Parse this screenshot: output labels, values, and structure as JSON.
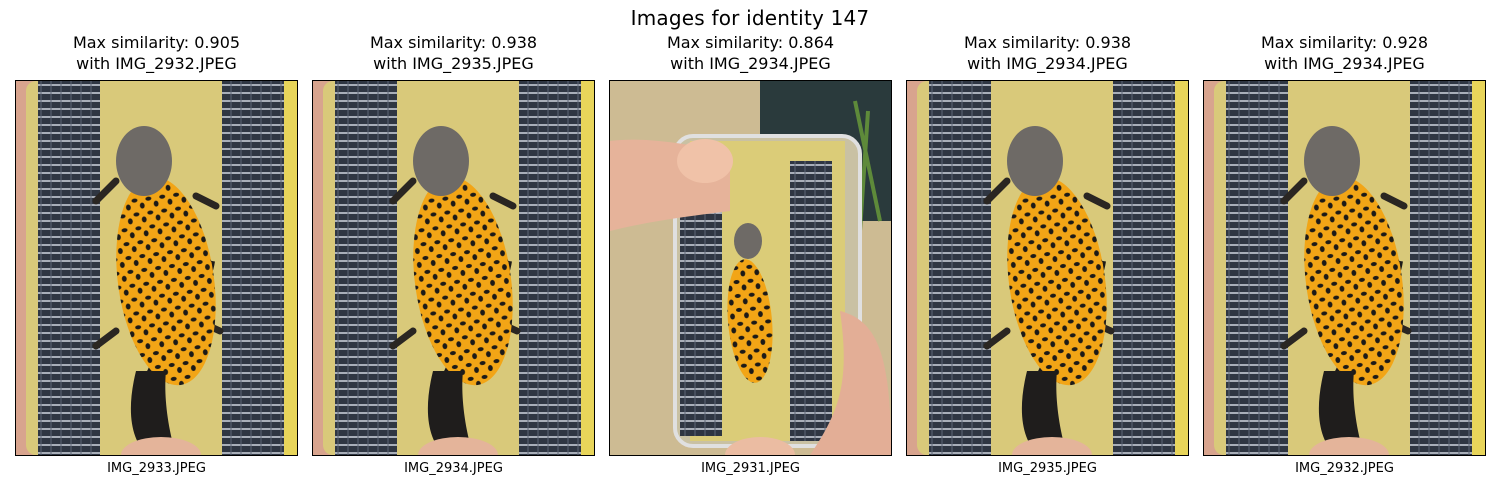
{
  "figure": {
    "title": "Images for identity 147"
  },
  "panels": [
    {
      "title_line1": "Max similarity: 0.905",
      "title_line2": "with IMG_2932.JPEG",
      "filename": "IMG_2933.JPEG"
    },
    {
      "title_line1": "Max similarity: 0.938",
      "title_line2": "with IMG_2935.JPEG",
      "filename": "IMG_2934.JPEG"
    },
    {
      "title_line1": "Max similarity: 0.864",
      "title_line2": "with IMG_2934.JPEG",
      "filename": "IMG_2931.JPEG"
    },
    {
      "title_line1": "Max similarity: 0.938",
      "title_line2": "with IMG_2934.JPEG",
      "filename": "IMG_2935.JPEG"
    },
    {
      "title_line1": "Max similarity: 0.928",
      "title_line2": "with IMG_2934.JPEG",
      "filename": "IMG_2932.JPEG"
    }
  ],
  "colors": {
    "box_fill": "#d9c97a",
    "grid_dark": "#2f3642",
    "newt_belly": "#f2a516",
    "newt_spot": "#1c1a18",
    "skin": "#e8b8a0"
  }
}
